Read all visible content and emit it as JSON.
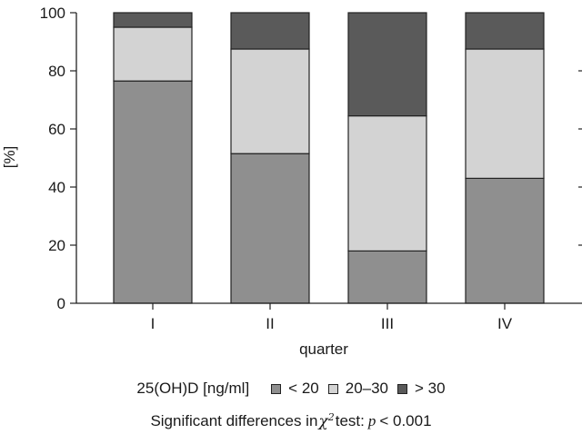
{
  "chart_data": {
    "type": "bar",
    "stacked": true,
    "categories": [
      "I",
      "II",
      "III",
      "IV"
    ],
    "series": [
      {
        "name": "< 20",
        "color": "#8f8f8f",
        "values": [
          76.5,
          51.5,
          18.0,
          43.0
        ]
      },
      {
        "name": "20–30",
        "color": "#d3d3d3",
        "values": [
          18.5,
          36.0,
          46.5,
          44.5
        ]
      },
      {
        "name": "> 30",
        "color": "#5a5a5a",
        "values": [
          5.0,
          12.5,
          35.5,
          12.5
        ]
      }
    ],
    "xlabel": "quarter",
    "ylabel": "[%]",
    "ylim": [
      0,
      100
    ],
    "yticks": [
      0,
      20,
      40,
      60,
      80,
      100
    ],
    "grid": false,
    "legend_placement": "bottom"
  },
  "legend": {
    "lead": "25(OH)D [ng/ml]",
    "items": [
      "< 20",
      "20–30",
      "> 30"
    ]
  },
  "note": {
    "prefix": "Significant differences in",
    "chi": "χ",
    "chi_sup": "2",
    "mid": "test:",
    "pvar": "p",
    "rest": "< 0.001"
  }
}
